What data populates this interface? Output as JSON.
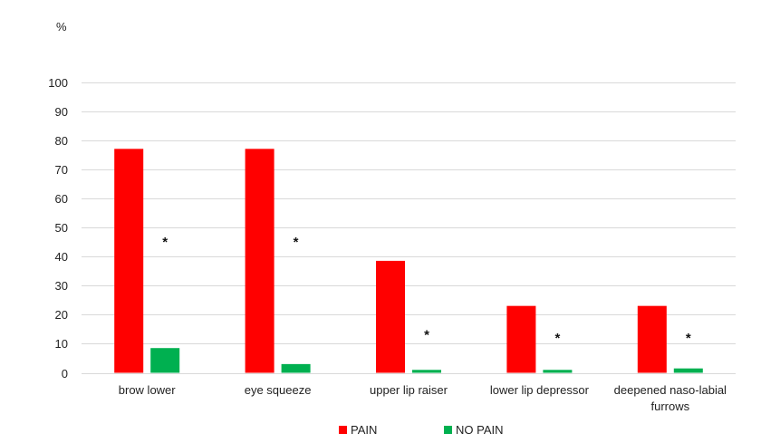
{
  "chart_data": {
    "type": "bar",
    "ylabel": "%",
    "ylim": [
      0,
      100
    ],
    "yticks": [
      0,
      10,
      20,
      30,
      40,
      50,
      60,
      70,
      80,
      90,
      100
    ],
    "grid": true,
    "legend_position": "bottom",
    "categories": [
      [
        "brow lower"
      ],
      [
        "eye squeeze"
      ],
      [
        "upper lip raiser"
      ],
      [
        "lower lip depressor"
      ],
      [
        "deepened naso-labial",
        "furrows"
      ]
    ],
    "series": [
      {
        "name": "PAIN",
        "color": "#ff0000",
        "values": [
          77,
          77,
          38.5,
          23,
          23
        ]
      },
      {
        "name": "NO PAIN",
        "color": "#00b050",
        "values": [
          8.5,
          3,
          1,
          1,
          1.5
        ]
      }
    ],
    "annotations": [
      {
        "category_index": 0,
        "text": "*",
        "y": 46
      },
      {
        "category_index": 1,
        "text": "*",
        "y": 46
      },
      {
        "category_index": 2,
        "text": "*",
        "y": 14
      },
      {
        "category_index": 3,
        "text": "*",
        "y": 13
      },
      {
        "category_index": 4,
        "text": "*",
        "y": 13
      }
    ]
  }
}
